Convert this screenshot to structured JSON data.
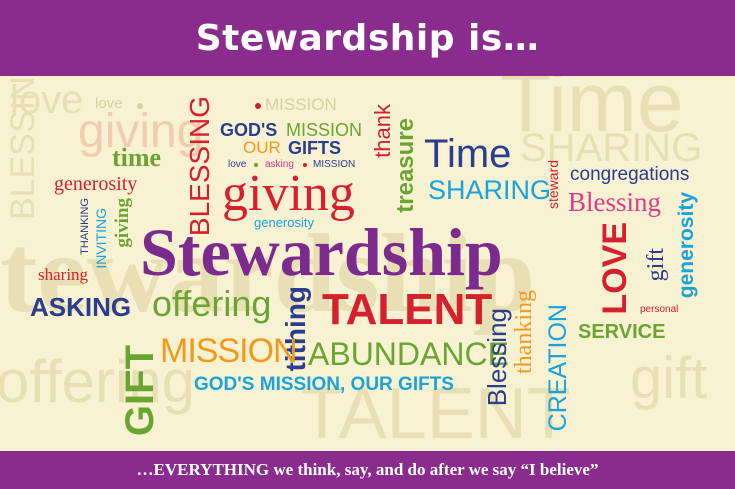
{
  "header": {
    "title": "Stewardship is…"
  },
  "footer": {
    "tagline": "…EVERYTHING we think, say, and do after we say “I believe”"
  },
  "colors": {
    "band": "#8a2c8e",
    "background": "#f8f2d2",
    "purple": "#7b2a8e",
    "red": "#d6202e",
    "green": "#6aa532",
    "navy": "#2b3d8f",
    "cyan": "#1aa3dc",
    "orange": "#f39a1d",
    "pink": "#e03a8a"
  },
  "ghost_words": {
    "blessing": "BLESSING",
    "time": "Time",
    "love": "love",
    "mission": "MISSION",
    "sharing": "SHARING",
    "stewardship": "tewardship",
    "offering": "offering",
    "talent": "TALENT",
    "gift": "gift",
    "giving": "giving"
  },
  "words": {
    "love_top": "love",
    "mission_top": "MISSION",
    "gods_mission": "GOD'S",
    "mission_1": "MISSION",
    "our": "OUR",
    "gifts": "GIFTS",
    "love_small": "love",
    "asking_small": "asking",
    "mission_small": "MISSION",
    "thank": "thank",
    "treasure": "treasure",
    "time_big": "Time",
    "sharing": "SHARING",
    "steward": "steward",
    "congregations": "congregations",
    "blessing_pink": "Blessing",
    "time_green": "time",
    "generosity_red": "generosity",
    "blessing_vert": "BLESSING",
    "giving_big": "giving",
    "generosity_small": "generosity",
    "thanking": "THANKING",
    "inviting": "INVITING",
    "giving_vert": "giving",
    "stewardship": "Stewardship",
    "sharing_small": "sharing",
    "love_vert": "LOVE",
    "gift_vert": "gift",
    "generosity_vert": "generosity",
    "personal": "personal",
    "asking": "ASKING",
    "offering": "offering",
    "tithing": "tithing",
    "talent": "TALENT",
    "service": "SERVICE",
    "gift_big": "GIFT",
    "mission_orange": "MISSION",
    "abundance": "ABUNDANCE",
    "gods_mission_our_gifts": "GOD'S MISSION, OUR GIFTS",
    "blessing_vert2": "Blessing",
    "thanking_vert": "thanking",
    "creation": "CREATION"
  }
}
